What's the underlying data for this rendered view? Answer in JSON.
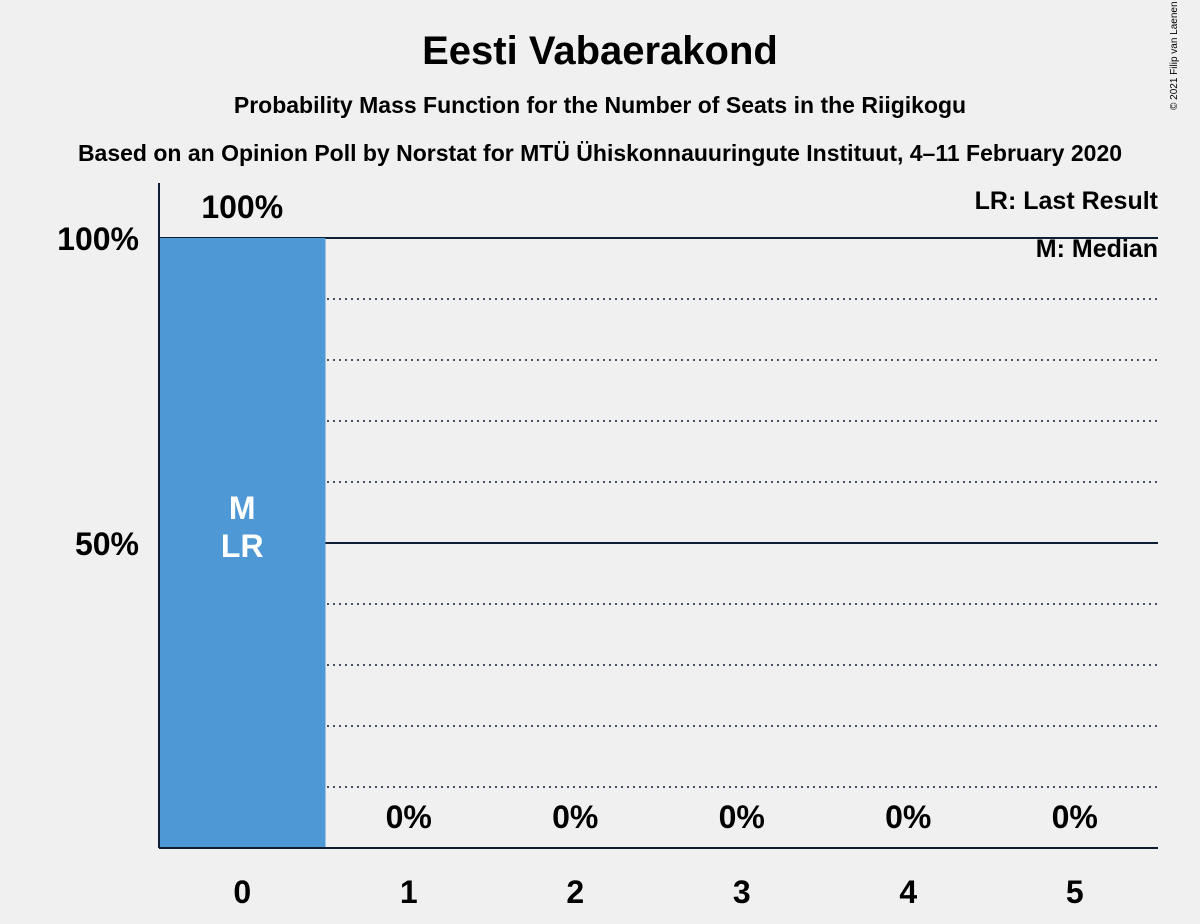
{
  "chart_data": {
    "type": "bar",
    "title": "Eesti Vabaerakond",
    "subtitle": "Probability Mass Function for the Number of Seats in the Riigikogu",
    "subtitle2": "Based on an Opinion Poll by Norstat for MTÜ Ühiskonnauuringute Instituut, 4–11 February 2020",
    "categories": [
      "0",
      "1",
      "2",
      "3",
      "4",
      "5"
    ],
    "values": [
      100,
      0,
      0,
      0,
      0,
      0
    ],
    "value_labels": [
      "100%",
      "0%",
      "0%",
      "0%",
      "0%",
      "0%"
    ],
    "ylim": [
      0,
      100
    ],
    "yticks": [
      50,
      100
    ],
    "ytick_labels": [
      "50%",
      "100%"
    ],
    "bar_annotation": [
      "M",
      "LR"
    ],
    "legend": [
      "LR: Last Result",
      "M: Median"
    ],
    "legend_position": "top-right",
    "grid": true,
    "bar_color": "#4f98d6",
    "copyright": "© 2021 Filip van Laenen"
  }
}
